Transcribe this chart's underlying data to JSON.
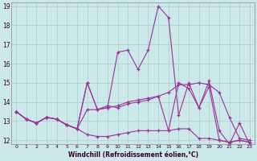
{
  "xlabel": "Windchill (Refroidissement éolien,°C)",
  "background_color": "#cce8e8",
  "line_color": "#993399",
  "grid_color": "#aacfcf",
  "xlim": [
    -0.5,
    23.5
  ],
  "ylim": [
    11.8,
    19.2
  ],
  "yticks": [
    12,
    13,
    14,
    15,
    16,
    17,
    18,
    19
  ],
  "xticks": [
    0,
    1,
    2,
    3,
    4,
    5,
    6,
    7,
    8,
    9,
    10,
    11,
    12,
    13,
    14,
    15,
    16,
    17,
    18,
    19,
    20,
    21,
    22,
    23
  ],
  "series": [
    [
      13.5,
      13.1,
      12.9,
      13.2,
      13.1,
      12.8,
      12.6,
      15.0,
      13.6,
      13.7,
      16.6,
      16.7,
      15.7,
      16.7,
      19.0,
      18.4,
      13.3,
      15.0,
      13.7,
      15.1,
      12.5,
      11.8,
      12.9,
      11.8
    ],
    [
      13.5,
      13.1,
      12.9,
      13.2,
      13.1,
      12.8,
      12.6,
      15.0,
      13.6,
      13.8,
      13.7,
      13.9,
      14.0,
      14.1,
      14.3,
      14.5,
      14.9,
      14.9,
      15.0,
      14.9,
      14.5,
      13.2,
      12.1,
      12.0
    ],
    [
      13.5,
      13.1,
      12.9,
      13.2,
      13.1,
      12.8,
      12.6,
      13.6,
      13.6,
      13.7,
      13.8,
      14.0,
      14.1,
      14.2,
      14.3,
      12.5,
      15.0,
      14.7,
      13.7,
      14.8,
      12.0,
      11.9,
      12.0,
      11.9
    ],
    [
      13.5,
      13.1,
      12.9,
      13.2,
      13.1,
      12.8,
      12.6,
      12.3,
      12.2,
      12.2,
      12.3,
      12.4,
      12.5,
      12.5,
      12.5,
      12.5,
      12.6,
      12.6,
      12.1,
      12.1,
      12.0,
      11.9,
      12.0,
      11.9
    ]
  ]
}
